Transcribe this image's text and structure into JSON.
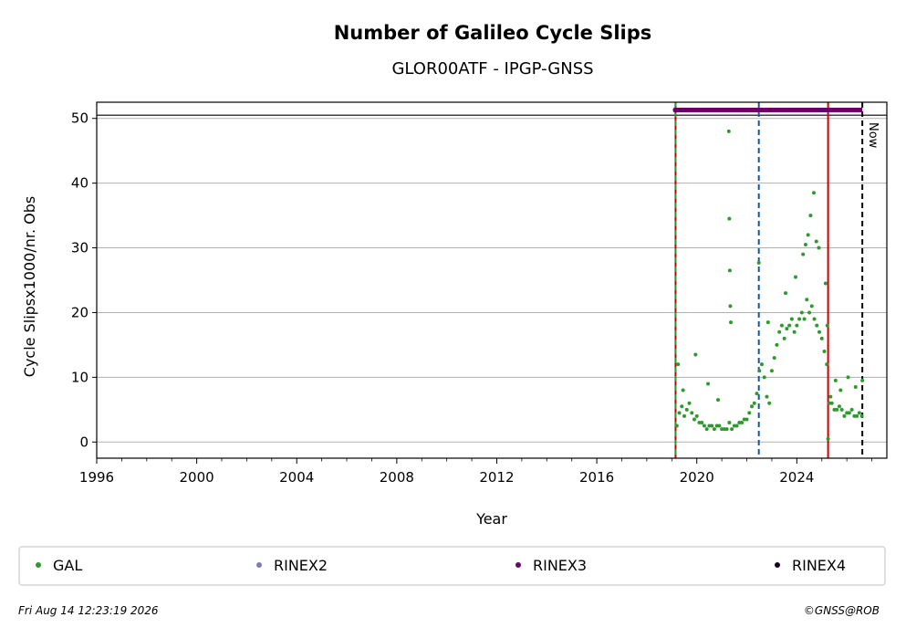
{
  "chart_data": {
    "type": "scatter",
    "title": "Number of Galileo Cycle Slips",
    "subtitle": "GLOR00ATF - IPGP-GNSS",
    "xlabel": "Year",
    "ylabel": "Cycle Slipsx1000/nr. Obs",
    "xlim": [
      1996,
      2027.6
    ],
    "ylim": [
      -2.5,
      52.5
    ],
    "x_ticks": [
      1996,
      2000,
      2004,
      2008,
      2012,
      2016,
      2020,
      2024
    ],
    "x_tick_labels": [
      "1996",
      "2000",
      "2004",
      "2008",
      "2012",
      "2016",
      "2020",
      "2024"
    ],
    "y_ticks": [
      0,
      10,
      20,
      30,
      40,
      50
    ],
    "y_tick_labels": [
      "0",
      "10",
      "20",
      "30",
      "40",
      "50"
    ],
    "grid": "horizontal",
    "series": [
      {
        "name": "GAL",
        "color": "#2e9a2e",
        "style": "dots",
        "x": [
          2019.2,
          2019.3,
          2019.4,
          2019.5,
          2019.6,
          2019.7,
          2019.8,
          2019.9,
          2020.0,
          2020.1,
          2020.2,
          2020.3,
          2020.4,
          2020.5,
          2020.6,
          2020.7,
          2020.8,
          2020.9,
          2021.0,
          2021.1,
          2021.2,
          2021.3,
          2021.4,
          2021.5,
          2021.6,
          2021.7,
          2021.8,
          2021.9,
          2022.0,
          2022.1,
          2022.2,
          2022.3,
          2022.4,
          2022.5,
          2022.6,
          2022.7,
          2022.8,
          2022.9,
          2023.0,
          2023.1,
          2023.2,
          2023.3,
          2023.4,
          2023.5,
          2023.6,
          2023.7,
          2023.8,
          2023.9,
          2024.0,
          2024.1,
          2024.2,
          2024.3,
          2024.4,
          2024.5,
          2024.6,
          2024.7,
          2024.8,
          2024.9,
          2025.0,
          2025.1,
          2025.2,
          2025.3,
          2025.4,
          2025.5,
          2025.6,
          2025.7,
          2025.8,
          2025.9,
          2026.0,
          2026.1,
          2026.2,
          2026.3,
          2026.4,
          2026.5,
          2026.6,
          2019.25,
          2019.45,
          2019.95,
          2020.45,
          2020.85,
          2021.28,
          2021.3,
          2021.32,
          2021.34,
          2021.36,
          2022.48,
          2022.85,
          2023.55,
          2023.95,
          2024.25,
          2024.35,
          2024.45,
          2024.55,
          2024.68,
          2024.78,
          2024.88,
          2025.15,
          2025.22,
          2025.25,
          2025.35,
          2025.55,
          2025.75,
          2026.05,
          2026.35,
          2026.62
        ],
        "y": [
          2.5,
          4.5,
          5.5,
          4.0,
          5.0,
          6.0,
          4.5,
          3.5,
          4.0,
          3.0,
          3.0,
          2.5,
          2.0,
          2.5,
          2.5,
          2.0,
          2.5,
          2.5,
          2.0,
          2.0,
          2.0,
          3.0,
          2.0,
          2.5,
          2.5,
          3.0,
          3.0,
          3.5,
          3.5,
          4.5,
          5.5,
          6.0,
          7.5,
          11.0,
          12.0,
          10.0,
          7.0,
          6.0,
          11.0,
          13.0,
          15.0,
          17.0,
          18.0,
          16.0,
          17.5,
          18.0,
          19.0,
          17.0,
          18.0,
          19.0,
          20.0,
          19.0,
          22.0,
          20.0,
          21.0,
          19.0,
          18.0,
          17.0,
          16.0,
          14.0,
          12.0,
          6.0,
          6.0,
          5.0,
          5.0,
          5.5,
          5.0,
          4.0,
          4.5,
          4.5,
          5.0,
          4.0,
          4.0,
          4.5,
          4.0,
          12.0,
          8.0,
          13.5,
          9.0,
          6.5,
          48.0,
          34.5,
          26.5,
          21.0,
          18.5,
          27.7,
          18.5,
          23.0,
          25.5,
          29.0,
          30.5,
          32.0,
          35.0,
          38.5,
          31.0,
          30.0,
          24.5,
          18.0,
          0.5,
          7.0,
          9.5,
          8.0,
          10.0,
          8.5,
          9.5
        ]
      },
      {
        "name": "RINEX2",
        "color": "#7b7bbd",
        "style": "dots",
        "x": [],
        "y": []
      },
      {
        "name": "RINEX3",
        "color": "#6a006a",
        "style": "bar",
        "x_range": [
          2019.15,
          2026.62
        ],
        "y": 51.3
      },
      {
        "name": "RINEX4",
        "color": "#1a0026",
        "style": "dots",
        "x": [],
        "y": []
      }
    ],
    "reference_lines": [
      {
        "x": 2019.15,
        "color": "#cc0000",
        "style": "solid"
      },
      {
        "x": 2019.15,
        "color": "#2e9a2e",
        "style": "dashed"
      },
      {
        "x": 2022.48,
        "color": "#1155aa",
        "style": "dashed"
      },
      {
        "x": 2025.25,
        "color": "#cc0000",
        "style": "solid"
      },
      {
        "x": 2026.62,
        "color": "#000000",
        "style": "dashed"
      }
    ],
    "hline": {
      "y": 50.5,
      "color": "#000000"
    },
    "now_label": "Now",
    "now_x": 2026.62,
    "legend": {
      "position": "bottom",
      "entries": [
        {
          "label": "GAL",
          "color": "#2e9a2e"
        },
        {
          "label": "RINEX2",
          "color": "#7b7bbd"
        },
        {
          "label": "RINEX3",
          "color": "#6a006a"
        },
        {
          "label": "RINEX4",
          "color": "#1a0026"
        }
      ]
    }
  },
  "footer": {
    "timestamp": "Fri Aug 14 12:23:19 2026",
    "credit": "©GNSS@ROB"
  }
}
